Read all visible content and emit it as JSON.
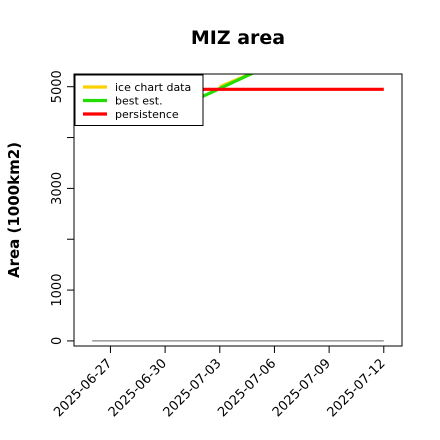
{
  "chart_data": {
    "type": "line",
    "title": "MIZ area",
    "ylabel": "Area (1000km2)",
    "xlabel": "",
    "x_ticks": [
      "2025-06-27",
      "2025-06-30",
      "2025-07-03",
      "2025-07-06",
      "2025-07-09",
      "2025-07-12"
    ],
    "y_ticks": [
      0,
      1000,
      3000,
      5000
    ],
    "xlim": [
      "2025-06-25",
      "2025-07-13"
    ],
    "ylim": [
      -100,
      5250
    ],
    "grid": false,
    "legend_position": "top-left",
    "series": [
      {
        "name": "ice chart data",
        "color": "#ffd000",
        "x": [
          "2025-07-03",
          "2025-07-05"
        ],
        "y": [
          5000,
          5300
        ]
      },
      {
        "name": "best est.",
        "color": "#22dd00",
        "x": [
          "2025-07-02",
          "2025-07-05"
        ],
        "y": [
          4800,
          5300
        ]
      },
      {
        "name": "persistence",
        "color": "#ff0000",
        "x": [
          "2025-07-02",
          "2025-07-12"
        ],
        "y": [
          4950,
          4950
        ]
      },
      {
        "name": "",
        "color": "#808080",
        "x": [
          "2025-06-26",
          "2025-07-12"
        ],
        "y": [
          0,
          0
        ]
      }
    ]
  }
}
